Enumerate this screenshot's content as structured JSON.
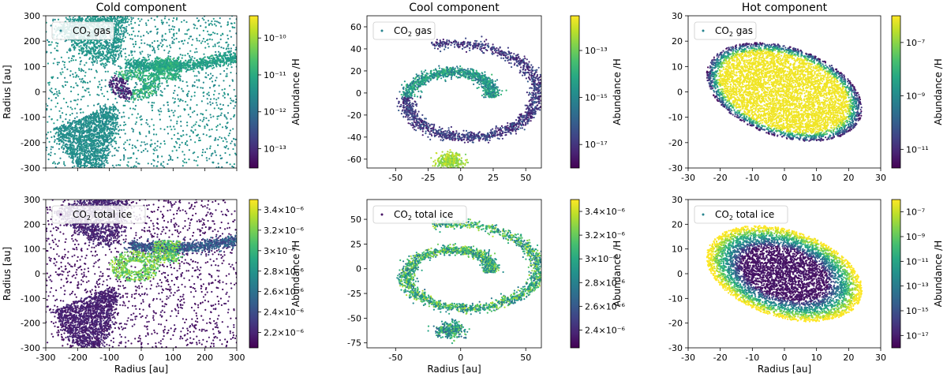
{
  "chart_data": [
    {
      "type": "scatter",
      "id": "cold-gas",
      "title": "Cold component",
      "legend": "CO2 gas",
      "xlabel": "",
      "ylabel": "Radius [au]",
      "xlim": [
        -300,
        300
      ],
      "ylim": [
        -300,
        300
      ],
      "xticks": [
        -300,
        -200,
        -100,
        0,
        100,
        200,
        300
      ],
      "yticks": [
        -300,
        -200,
        -100,
        0,
        100,
        200,
        300
      ],
      "show_xticklabels": false,
      "colorbar": {
        "label": "Abundance /H",
        "scale": "log",
        "range": [
          3e-14,
          4e-10
        ],
        "ticks": [
          1e-13,
          1e-12,
          1e-11,
          1e-10
        ]
      },
      "structure": "cold"
    },
    {
      "type": "scatter",
      "id": "cool-gas",
      "title": "Cool component",
      "legend": "CO2 gas",
      "xlabel": "",
      "ylabel": "",
      "xlim": [
        -72,
        62
      ],
      "ylim": [
        -68,
        70
      ],
      "xticks": [
        -50,
        -25,
        0,
        25,
        50
      ],
      "yticks": [
        -60,
        -40,
        -20,
        0,
        20,
        40,
        60
      ],
      "show_xticklabels": true,
      "colorbar": {
        "label": "Abundance /H",
        "scale": "log",
        "range": [
          1e-18,
          3e-12
        ],
        "ticks": [
          1e-17,
          1e-15,
          1e-13
        ]
      },
      "structure": "cool"
    },
    {
      "type": "scatter",
      "id": "hot-gas",
      "title": "Hot component",
      "legend": "CO2 gas",
      "xlabel": "",
      "ylabel": "",
      "xlim": [
        -30,
        30
      ],
      "ylim": [
        -30,
        30
      ],
      "xticks": [
        -30,
        -20,
        -10,
        0,
        10,
        20,
        30
      ],
      "yticks": [
        -30,
        -20,
        -10,
        0,
        10,
        20,
        30
      ],
      "show_xticklabels": true,
      "colorbar": {
        "label": "Abundance /H",
        "scale": "log",
        "range": [
          2e-12,
          1e-06
        ],
        "ticks": [
          1e-11,
          1e-09,
          1e-07
        ]
      },
      "structure": "hot-gas"
    },
    {
      "type": "scatter",
      "id": "cold-ice",
      "title": "",
      "legend": "CO2 total ice",
      "xlabel": "Radius [au]",
      "ylabel": "Radius [au]",
      "xlim": [
        -300,
        300
      ],
      "ylim": [
        -300,
        300
      ],
      "xticks": [
        -300,
        -200,
        -100,
        0,
        100,
        200,
        300
      ],
      "yticks": [
        -300,
        -200,
        -100,
        0,
        100,
        200,
        300
      ],
      "show_xticklabels": true,
      "colorbar": {
        "label": "Abundance /H",
        "scale": "linear",
        "range": [
          2.05e-06,
          3.5e-06
        ],
        "ticks": [
          2.2e-06,
          2.4e-06,
          2.6e-06,
          2.8e-06,
          3e-06,
          3.2e-06,
          3.4e-06
        ],
        "ticklabels": [
          "2.2×10⁻⁶",
          "2.4×10⁻⁶",
          "2.6×10⁻⁶",
          "2.8×10⁻⁶",
          "3×10⁻⁶",
          "3.2×10⁻⁶",
          "3.4×10⁻⁶"
        ]
      },
      "structure": "cold"
    },
    {
      "type": "scatter",
      "id": "cool-ice",
      "title": "",
      "legend": "CO2 total ice",
      "xlabel": "Radius [au]",
      "ylabel": "",
      "xlim": [
        -72,
        62
      ],
      "ylim": [
        -80,
        70
      ],
      "xticks": [
        -50,
        0,
        50
      ],
      "yticks": [
        -75,
        -50,
        -25,
        0,
        25,
        50
      ],
      "show_xticklabels": true,
      "colorbar": {
        "label": "Abundance /H",
        "scale": "linear",
        "range": [
          2.25e-06,
          3.5e-06
        ],
        "ticks": [
          2.4e-06,
          2.6e-06,
          2.8e-06,
          3e-06,
          3.2e-06,
          3.4e-06
        ],
        "ticklabels": [
          "2.4×10⁻⁶",
          "2.6×10⁻⁶",
          "2.8×10⁻⁶",
          "3×10⁻⁶",
          "3.2×10⁻⁶",
          "3.4×10⁻⁶"
        ]
      },
      "structure": "cool"
    },
    {
      "type": "scatter",
      "id": "hot-ice",
      "title": "",
      "legend": "CO2 total ice",
      "xlabel": "Radius [au]",
      "ylabel": "",
      "xlim": [
        -30,
        30
      ],
      "ylim": [
        -30,
        30
      ],
      "xticks": [
        -30,
        -20,
        -10,
        0,
        10,
        20,
        30
      ],
      "yticks": [
        -30,
        -20,
        -10,
        0,
        10,
        20,
        30
      ],
      "show_xticklabels": true,
      "colorbar": {
        "label": "Abundance /H",
        "scale": "log",
        "range": [
          1e-18,
          1e-06
        ],
        "ticks": [
          1e-17,
          1e-15,
          1e-13,
          1e-11,
          1e-09,
          1e-07
        ]
      },
      "structure": "hot-ice"
    }
  ]
}
